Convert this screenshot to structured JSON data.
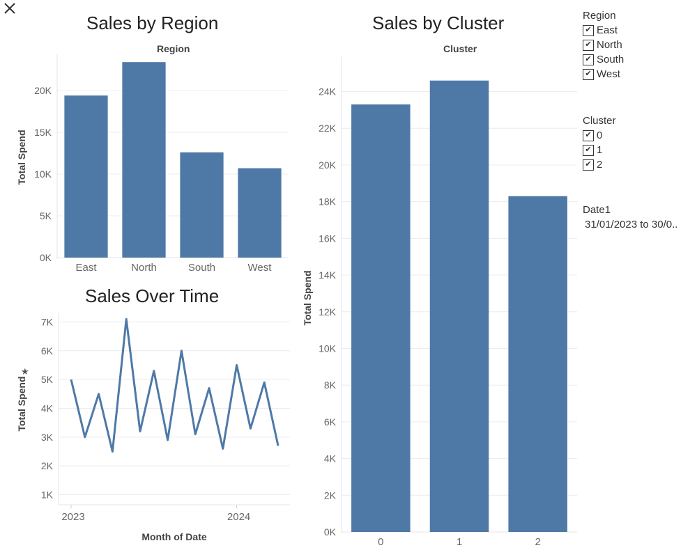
{
  "close_icon": "close-x-icon",
  "charts": {
    "region": {
      "title": "Sales by Region",
      "header": "Region"
    },
    "cluster": {
      "title": "Sales by Cluster",
      "header": "Cluster"
    },
    "time": {
      "title": "Sales Over Time"
    }
  },
  "legends": {
    "region": {
      "title": "Region",
      "items": [
        "East",
        "North",
        "South",
        "West"
      ]
    },
    "cluster": {
      "title": "Cluster",
      "items": [
        "0",
        "1",
        "2"
      ]
    },
    "date": {
      "title": "Date1",
      "value": "31/01/2023 to 30/0.."
    }
  },
  "colors": {
    "bar": "#4e79a7",
    "grid": "#ececec",
    "axis_text": "#666666"
  },
  "chart_data": [
    {
      "type": "bar",
      "title": "Sales by Region",
      "header": "Region",
      "categories": [
        "East",
        "North",
        "South",
        "West"
      ],
      "values": [
        19400,
        23400,
        12600,
        10700
      ],
      "ylabel": "Total Spend",
      "ylim": [
        0,
        24000
      ],
      "yticks": [
        0,
        5000,
        10000,
        15000,
        20000
      ],
      "ytick_labels": [
        "0K",
        "5K",
        "10K",
        "15K",
        "20K"
      ],
      "grid": true
    },
    {
      "type": "bar",
      "title": "Sales by Cluster",
      "header": "Cluster",
      "categories": [
        "0",
        "1",
        "2"
      ],
      "values": [
        23300,
        24600,
        18300
      ],
      "ylabel": "Total Spend",
      "ylim": [
        0,
        25500
      ],
      "yticks": [
        0,
        2000,
        4000,
        6000,
        8000,
        10000,
        12000,
        14000,
        16000,
        18000,
        20000,
        22000,
        24000
      ],
      "ytick_labels": [
        "0K",
        "2K",
        "4K",
        "6K",
        "8K",
        "10K",
        "12K",
        "14K",
        "16K",
        "18K",
        "20K",
        "22K",
        "24K"
      ],
      "grid": true
    },
    {
      "type": "line",
      "title": "Sales Over Time",
      "xlabel": "Month of Date",
      "ylabel": "Total Spend",
      "x": [
        "2023-01",
        "2023-02",
        "2023-03",
        "2023-04",
        "2023-05",
        "2023-06",
        "2023-07",
        "2023-08",
        "2023-09",
        "2023-10",
        "2023-11",
        "2023-12",
        "2024-01",
        "2024-02",
        "2024-03",
        "2024-04"
      ],
      "values": [
        5000,
        3000,
        4500,
        2500,
        7100,
        3200,
        5300,
        2900,
        6000,
        3100,
        4700,
        2600,
        5500,
        3300,
        4900,
        2700
      ],
      "ylim": [
        650,
        7300
      ],
      "yticks": [
        1000,
        2000,
        3000,
        4000,
        5000,
        6000,
        7000
      ],
      "ytick_labels": [
        "1K",
        "2K",
        "3K",
        "4K",
        "5K",
        "6K",
        "7K"
      ],
      "xtick_labels": [
        "2023",
        "2024"
      ],
      "grid": true
    }
  ]
}
